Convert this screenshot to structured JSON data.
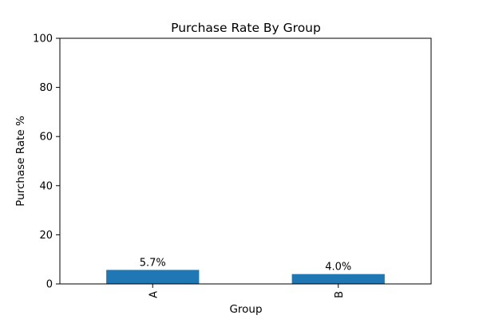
{
  "chart_data": {
    "type": "bar",
    "title": "Purchase Rate By Group",
    "xlabel": "Group",
    "ylabel": "Purchase Rate %",
    "categories": [
      "A",
      "B"
    ],
    "values": [
      5.7,
      4.0
    ],
    "data_labels": [
      "5.7%",
      "4.0%"
    ],
    "ylim": [
      0,
      100
    ],
    "yticks": [
      0,
      20,
      40,
      60,
      80,
      100
    ],
    "ytick_labels": [
      "0",
      "20",
      "40",
      "60",
      "80",
      "100"
    ],
    "bar_color": "#1f77b4",
    "grid": false,
    "xtick_rotation": "vertical"
  }
}
